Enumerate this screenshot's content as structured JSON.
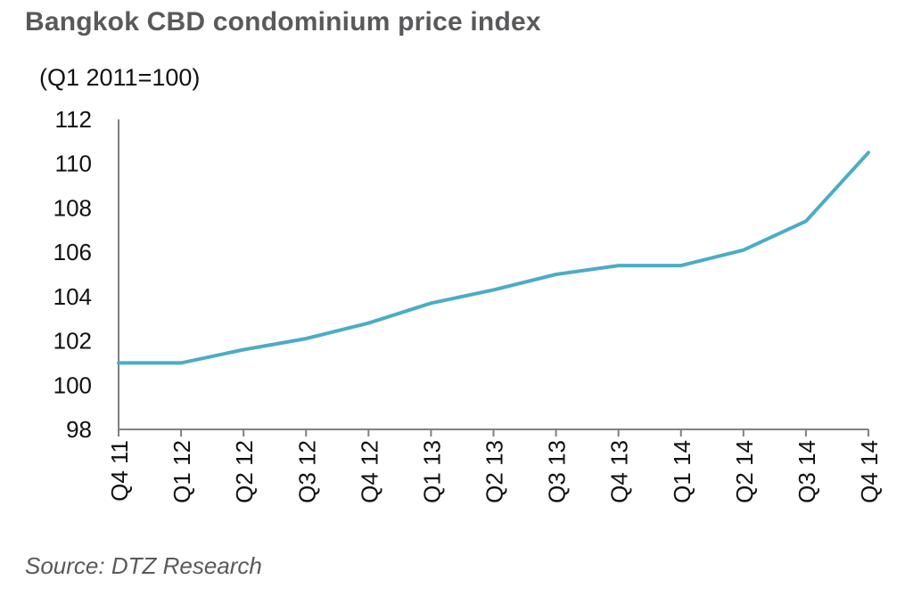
{
  "chart_data": {
    "type": "line",
    "title": "Bangkok CBD condominium price index",
    "subtitle": "(Q1 2011=100)",
    "source": "Source: DTZ Research",
    "xlabel": "",
    "ylabel": "",
    "ylim": [
      98,
      112
    ],
    "yticks": [
      98,
      100,
      102,
      104,
      106,
      108,
      110,
      112
    ],
    "categories": [
      "Q4 11",
      "Q1 12",
      "Q2 12",
      "Q3 12",
      "Q4 12",
      "Q1 13",
      "Q2 13",
      "Q3 13",
      "Q4 13",
      "Q1 14",
      "Q2 14",
      "Q3 14",
      "Q4 14"
    ],
    "series": [
      {
        "name": "Bangkok CBD condominium price index",
        "values": [
          101.0,
          101.0,
          101.6,
          102.1,
          102.8,
          103.7,
          104.3,
          105.0,
          105.4,
          105.4,
          106.1,
          107.4,
          110.5
        ]
      }
    ],
    "colors": {
      "line": "#4bacc6",
      "axis": "#808080",
      "text": "#111111",
      "title": "#58595b"
    },
    "grid": false,
    "legend": "none"
  }
}
